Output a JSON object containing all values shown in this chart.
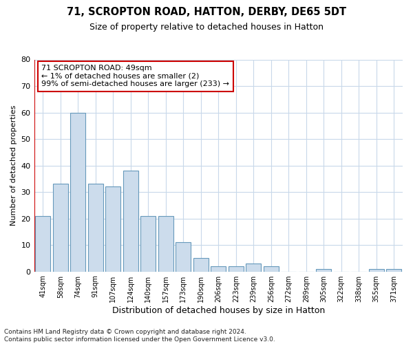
{
  "title": "71, SCROPTON ROAD, HATTON, DERBY, DE65 5DT",
  "subtitle": "Size of property relative to detached houses in Hatton",
  "xlabel": "Distribution of detached houses by size in Hatton",
  "ylabel": "Number of detached properties",
  "categories": [
    "41sqm",
    "58sqm",
    "74sqm",
    "91sqm",
    "107sqm",
    "124sqm",
    "140sqm",
    "157sqm",
    "173sqm",
    "190sqm",
    "206sqm",
    "223sqm",
    "239sqm",
    "256sqm",
    "272sqm",
    "289sqm",
    "305sqm",
    "322sqm",
    "338sqm",
    "355sqm",
    "371sqm"
  ],
  "values": [
    21,
    33,
    60,
    33,
    32,
    38,
    21,
    21,
    11,
    5,
    2,
    2,
    3,
    2,
    0,
    0,
    1,
    0,
    0,
    1,
    1
  ],
  "bar_color": "#ccdcec",
  "bar_edge_color": "#6699bb",
  "highlight_color": "#cc0000",
  "annotation_text": "71 SCROPTON ROAD: 49sqm\n← 1% of detached houses are smaller (2)\n99% of semi-detached houses are larger (233) →",
  "annotation_box_color": "#ffffff",
  "annotation_box_edge_color": "#cc0000",
  "ylim": [
    0,
    80
  ],
  "yticks": [
    0,
    10,
    20,
    30,
    40,
    50,
    60,
    70,
    80
  ],
  "grid_color": "#c8d8ea",
  "background_color": "#ffffff",
  "footnote": "Contains HM Land Registry data © Crown copyright and database right 2024.\nContains public sector information licensed under the Open Government Licence v3.0.",
  "title_fontsize": 10.5,
  "subtitle_fontsize": 9,
  "xlabel_fontsize": 9,
  "ylabel_fontsize": 8,
  "annotation_fontsize": 8,
  "footnote_fontsize": 6.5
}
